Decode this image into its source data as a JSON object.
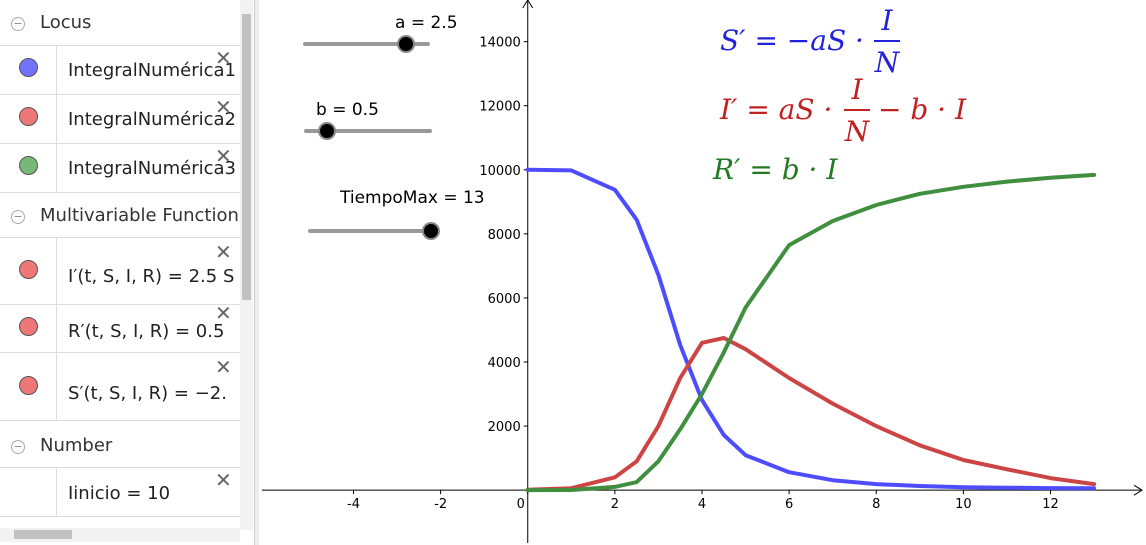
{
  "sidebar": {
    "sections": [
      {
        "title": "Locus",
        "items": [
          "IntegralNumérica1",
          "IntegralNumérica2",
          "IntegralNumérica3"
        ]
      },
      {
        "title": "Multivariable Function",
        "items": [
          "I′(t, S, I, R) = 2.5 S",
          "R′(t, S, I, R) = 0.5",
          "S′(t, S, I, R) = −2."
        ]
      },
      {
        "title": "Number",
        "items": [
          "Iinicio = 10"
        ]
      }
    ]
  },
  "sliders": [
    "a = 2.5",
    "b = 0.5",
    "TiempoMax = 13"
  ],
  "equations": [
    {
      "lhs": "S′ = −aS ·",
      "num": "I",
      "den": "N"
    },
    {
      "lhs": "I′ = aS ·",
      "num": "I",
      "den": "N",
      "rhs": "− b · I"
    },
    {
      "text": "R′ = b · I"
    }
  ],
  "chart_data": {
    "type": "line",
    "x": [
      0,
      1,
      2,
      2.5,
      3,
      3.5,
      4,
      4.5,
      5,
      6,
      7,
      8,
      9,
      10,
      11,
      12,
      13
    ],
    "series": [
      {
        "color": "#4d4dff",
        "values": [
          10000,
          9980,
          9375,
          8440,
          6720,
          4530,
          2810,
          1720,
          1090,
          560,
          310,
          190,
          130,
          90,
          75,
          65,
          60
        ]
      },
      {
        "color": "#cc4444",
        "values": [
          10,
          60,
          400,
          900,
          2000,
          3500,
          4600,
          4750,
          4400,
          3500,
          2700,
          2000,
          1400,
          940,
          650,
          375,
          190
        ]
      },
      {
        "color": "#3f8f3f",
        "values": [
          0,
          5,
          100,
          250,
          900,
          1900,
          3000,
          4300,
          5700,
          7650,
          8400,
          8900,
          9250,
          9470,
          9630,
          9750,
          9840
        ]
      }
    ],
    "xlim": [
      -6.1,
      14.1
    ],
    "xticks": [
      -4,
      -2,
      0,
      2,
      4,
      6,
      8,
      10,
      12
    ],
    "ylim": [
      -1650,
      15300
    ],
    "yticks": [
      2000,
      4000,
      6000,
      8000,
      10000,
      12000,
      14000
    ],
    "grid": false
  }
}
